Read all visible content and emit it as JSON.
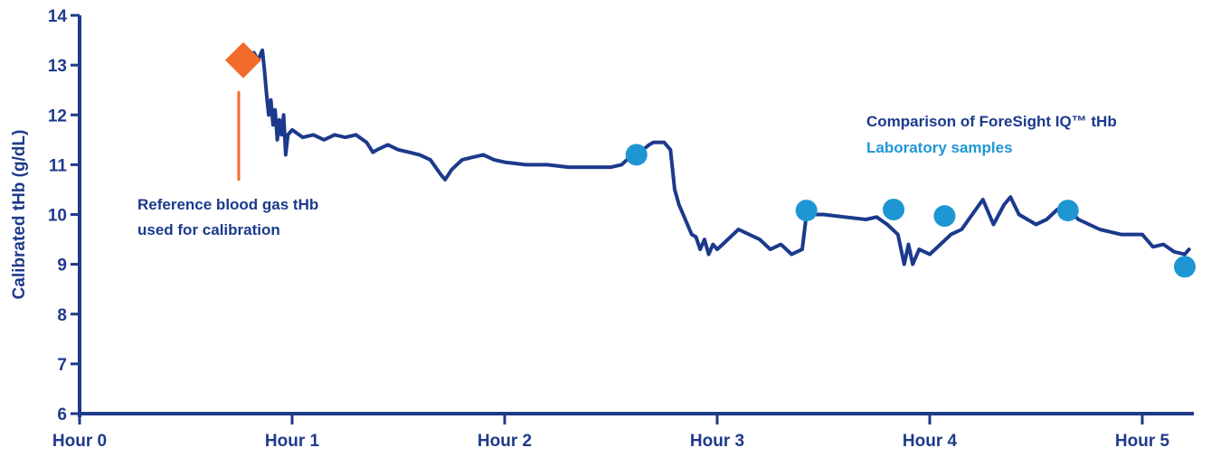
{
  "chart_data": {
    "type": "line",
    "title": "",
    "xlabel": "",
    "ylabel": "Calibrated tHb (g/dL)",
    "xlim": [
      0,
      5.25
    ],
    "ylim": [
      6,
      14
    ],
    "x_ticks": [
      {
        "value": 0,
        "label": "Hour 0"
      },
      {
        "value": 1,
        "label": "Hour 1"
      },
      {
        "value": 2,
        "label": "Hour 2"
      },
      {
        "value": 3,
        "label": "Hour 3"
      },
      {
        "value": 4,
        "label": "Hour 4"
      },
      {
        "value": 5,
        "label": "Hour 5"
      }
    ],
    "y_ticks": [
      6,
      7,
      8,
      9,
      10,
      11,
      12,
      13,
      14
    ],
    "grid": false,
    "colors": {
      "axis": "#1F3A8A",
      "line": "#1B3A8C",
      "samples": "#1E96D4",
      "reference": "#F26B2B"
    },
    "series": [
      {
        "kind": "line",
        "points": [
          [
            0.8,
            13.1
          ],
          [
            0.82,
            13.25
          ],
          [
            0.84,
            13.1
          ],
          [
            0.86,
            13.3
          ],
          [
            0.87,
            12.9
          ],
          [
            0.88,
            12.4
          ],
          [
            0.89,
            12.0
          ],
          [
            0.9,
            12.3
          ],
          [
            0.91,
            11.8
          ],
          [
            0.92,
            12.1
          ],
          [
            0.93,
            11.5
          ],
          [
            0.94,
            11.9
          ],
          [
            0.95,
            11.6
          ],
          [
            0.96,
            12.0
          ],
          [
            0.97,
            11.2
          ],
          [
            0.98,
            11.6
          ],
          [
            1.0,
            11.7
          ],
          [
            1.05,
            11.55
          ],
          [
            1.1,
            11.6
          ],
          [
            1.15,
            11.5
          ],
          [
            1.2,
            11.6
          ],
          [
            1.25,
            11.55
          ],
          [
            1.3,
            11.6
          ],
          [
            1.35,
            11.45
          ],
          [
            1.38,
            11.25
          ],
          [
            1.4,
            11.3
          ],
          [
            1.45,
            11.4
          ],
          [
            1.5,
            11.3
          ],
          [
            1.55,
            11.25
          ],
          [
            1.6,
            11.2
          ],
          [
            1.65,
            11.1
          ],
          [
            1.7,
            10.8
          ],
          [
            1.72,
            10.7
          ],
          [
            1.75,
            10.9
          ],
          [
            1.8,
            11.1
          ],
          [
            1.85,
            11.15
          ],
          [
            1.9,
            11.2
          ],
          [
            1.95,
            11.1
          ],
          [
            2.0,
            11.05
          ],
          [
            2.1,
            11.0
          ],
          [
            2.2,
            11.0
          ],
          [
            2.3,
            10.95
          ],
          [
            2.4,
            10.95
          ],
          [
            2.5,
            10.95
          ],
          [
            2.55,
            11.0
          ],
          [
            2.6,
            11.2
          ],
          [
            2.65,
            11.3
          ],
          [
            2.68,
            11.4
          ],
          [
            2.7,
            11.45
          ],
          [
            2.75,
            11.45
          ],
          [
            2.78,
            11.3
          ],
          [
            2.8,
            10.5
          ],
          [
            2.82,
            10.2
          ],
          [
            2.84,
            10.0
          ],
          [
            2.86,
            9.8
          ],
          [
            2.88,
            9.6
          ],
          [
            2.9,
            9.55
          ],
          [
            2.92,
            9.3
          ],
          [
            2.94,
            9.5
          ],
          [
            2.96,
            9.2
          ],
          [
            2.98,
            9.4
          ],
          [
            3.0,
            9.3
          ],
          [
            3.05,
            9.5
          ],
          [
            3.1,
            9.7
          ],
          [
            3.15,
            9.6
          ],
          [
            3.2,
            9.5
          ],
          [
            3.25,
            9.3
          ],
          [
            3.3,
            9.4
          ],
          [
            3.35,
            9.2
          ],
          [
            3.4,
            9.3
          ],
          [
            3.42,
            10.0
          ],
          [
            3.5,
            10.0
          ],
          [
            3.6,
            9.95
          ],
          [
            3.7,
            9.9
          ],
          [
            3.75,
            9.95
          ],
          [
            3.8,
            9.8
          ],
          [
            3.85,
            9.6
          ],
          [
            3.88,
            9.0
          ],
          [
            3.9,
            9.4
          ],
          [
            3.92,
            9.0
          ],
          [
            3.95,
            9.3
          ],
          [
            4.0,
            9.2
          ],
          [
            4.05,
            9.4
          ],
          [
            4.1,
            9.6
          ],
          [
            4.15,
            9.7
          ],
          [
            4.2,
            10.0
          ],
          [
            4.25,
            10.3
          ],
          [
            4.3,
            9.8
          ],
          [
            4.35,
            10.2
          ],
          [
            4.38,
            10.35
          ],
          [
            4.42,
            10.0
          ],
          [
            4.5,
            9.8
          ],
          [
            4.55,
            9.9
          ],
          [
            4.6,
            10.1
          ],
          [
            4.65,
            10.1
          ],
          [
            4.7,
            9.9
          ],
          [
            4.8,
            9.7
          ],
          [
            4.9,
            9.6
          ],
          [
            5.0,
            9.6
          ],
          [
            5.05,
            9.35
          ],
          [
            5.1,
            9.4
          ],
          [
            5.15,
            9.25
          ],
          [
            5.2,
            9.2
          ],
          [
            5.22,
            9.3
          ]
        ]
      },
      {
        "kind": "scatter",
        "points": [
          [
            2.62,
            11.2
          ],
          [
            3.42,
            10.08
          ],
          [
            3.83,
            10.1
          ],
          [
            4.07,
            9.97
          ],
          [
            4.65,
            10.08
          ],
          [
            5.2,
            8.95
          ]
        ]
      },
      {
        "kind": "marker",
        "points": [
          [
            0.77,
            13.1
          ]
        ]
      }
    ],
    "legend": [
      {
        "text": "Comparison of ForeSight IQ™ tHb",
        "color": "#1B3A8C"
      },
      {
        "text": "Laboratory samples",
        "color": "#1E96D4"
      }
    ],
    "annotation": {
      "lines": [
        "Reference blood gas tHb",
        "used for calibration"
      ],
      "color": "#1B3A8C"
    }
  }
}
